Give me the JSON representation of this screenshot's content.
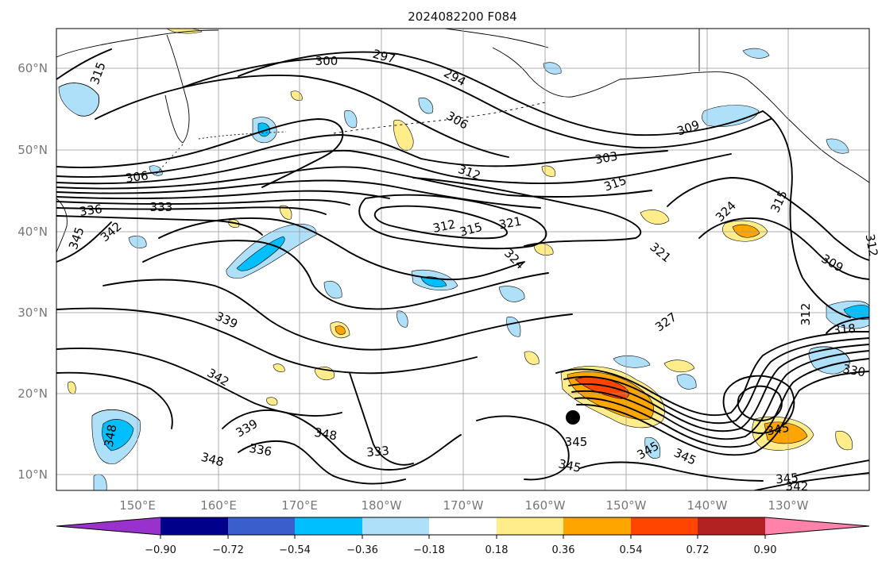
{
  "title": "2024082200 F084",
  "lat_ticks": [
    "60°N",
    "50°N",
    "40°N",
    "30°N",
    "20°N",
    "10°N"
  ],
  "lon_ticks": [
    "150°E",
    "160°E",
    "170°E",
    "180°W",
    "170°W",
    "160°W",
    "150°W",
    "140°W",
    "130°W"
  ],
  "colorbar": {
    "colors": [
      "#9932cc",
      "#00008b",
      "#3a5fcd",
      "#00bfff",
      "#afe0fa",
      "#ffffff",
      "#ffec8b",
      "#ffa500",
      "#ff4500",
      "#b22222",
      "#ff82ab"
    ],
    "tick_labels": [
      "−0.90",
      "−0.72",
      "−0.54",
      "−0.36",
      "−0.18",
      "0.18",
      "0.36",
      "0.54",
      "0.72",
      "0.90"
    ]
  },
  "contour_labels": [
    "297",
    "300",
    "294",
    "306",
    "309",
    "303",
    "312",
    "315",
    "312",
    "315",
    "321",
    "324",
    "321",
    "324",
    "315",
    "309",
    "312",
    "327",
    "318",
    "330",
    "315",
    "312",
    "306",
    "336",
    "333",
    "342",
    "345",
    "339",
    "342",
    "339",
    "336",
    "348",
    "348",
    "333",
    "348",
    "345",
    "345",
    "345",
    "345",
    "345",
    "345",
    "342"
  ],
  "storm_marker": "tropical-cyclone-position"
}
